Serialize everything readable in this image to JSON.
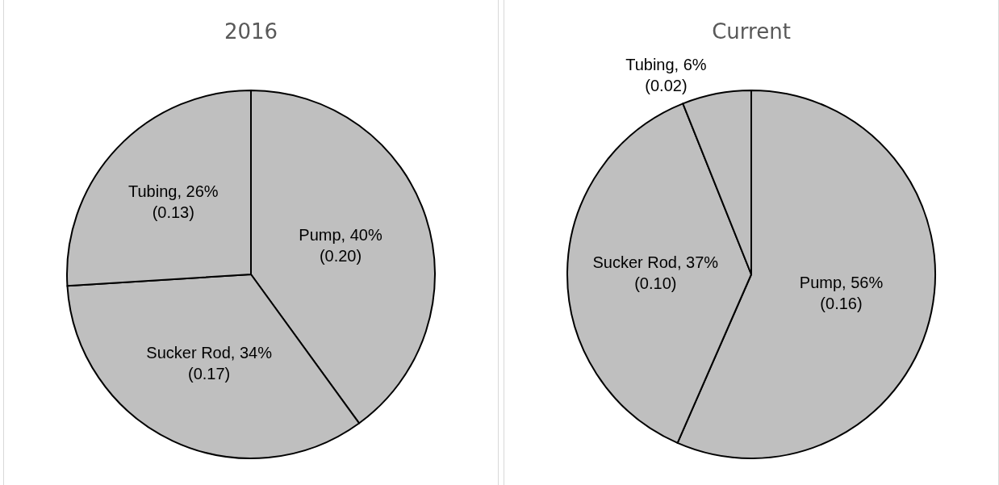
{
  "chart_data": [
    {
      "type": "pie",
      "title": "2016",
      "categories": [
        "Pump",
        "Sucker Rod",
        "Tubing"
      ],
      "values": [
        40,
        34,
        26
      ],
      "colors": [
        "#bfbfbf",
        "#bfbfbf",
        "#bfbfbf"
      ],
      "value_labels": [
        "40%\n(0.20)",
        "34%\n(0.17)",
        "26%\n(0.13)"
      ]
    },
    {
      "type": "pie",
      "title": "Current",
      "categories": [
        "Pump",
        "Sucker Rod",
        "Tubing"
      ],
      "values": [
        56,
        37,
        6
      ],
      "colors": [
        "#bfbfbf",
        "#bfbfbf",
        "#bfbfbf"
      ],
      "value_labels": [
        "56%\n(0.16)",
        "37%\n(0.10)",
        "6%\n(0.02)"
      ]
    }
  ]
}
